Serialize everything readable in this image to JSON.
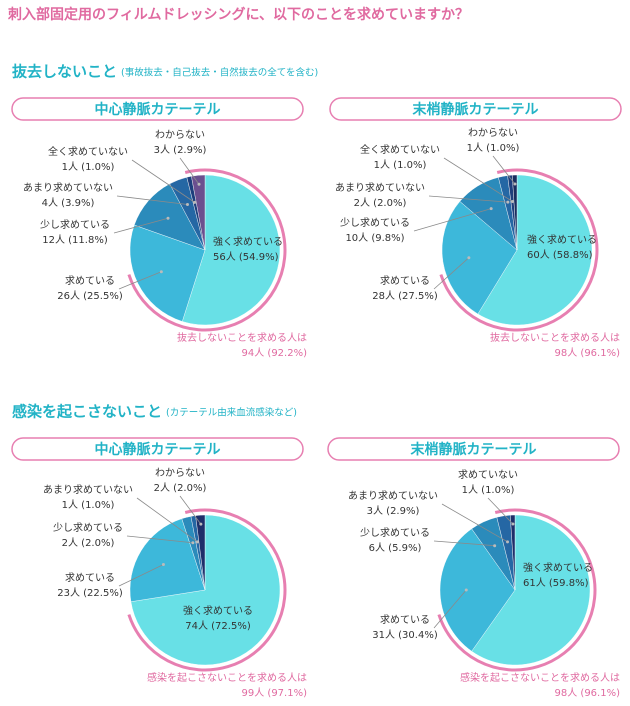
{
  "title": "刺入部固定用のフィルムドレッシングに、以下のことを求めていますか？",
  "sections": [
    {
      "heading": "抜去しないこと",
      "note": "(事故抜去・自己抜去・自然抜去の全てを含む)"
    },
    {
      "heading": "感染を起こさないこと",
      "note": "(カテーテル由来血流感染など)"
    }
  ],
  "chart_data": [
    {
      "type": "pie",
      "title": "中心静脈カテーテル",
      "categories": [
        "強く求めている",
        "求めている",
        "少し求めている",
        "あまり求めていない",
        "全く求めていない",
        "わからない"
      ],
      "values": [
        54.9,
        25.5,
        11.8,
        3.9,
        1.0,
        2.9
      ],
      "value_labels": [
        "56人 (54.9%)",
        "26人 (25.5%)",
        "12人 (11.8%)",
        "4人 (3.9%)",
        "1人 (1.0%)",
        "3人 (2.9%)"
      ],
      "colors": [
        "#68e0e6",
        "#3db8da",
        "#2b8bbb",
        "#2567a4",
        "#1e3f7c",
        "#6b4f8f"
      ],
      "annotation": [
        "抜去しないことを求める人は",
        "94人 (92.2%)"
      ]
    },
    {
      "type": "pie",
      "title": "末梢静脈カテーテル",
      "categories": [
        "強く求めている",
        "求めている",
        "少し求めている",
        "あまり求めていない",
        "全く求めていない",
        "わからない"
      ],
      "values": [
        58.8,
        27.5,
        9.8,
        2.0,
        1.0,
        1.0
      ],
      "value_labels": [
        "60人 (58.8%)",
        "28人 (27.5%)",
        "10人 (9.8%)",
        "2人 (2.0%)",
        "1人 (1.0%)",
        "1人 (1.0%)"
      ],
      "colors": [
        "#68e0e6",
        "#3db8da",
        "#2b8bbb",
        "#2567a4",
        "#1e3f7c",
        "#1a2d5e"
      ],
      "annotation": [
        "抜去しないことを求める人は",
        "98人 (96.1%)"
      ]
    },
    {
      "type": "pie",
      "title": "中心静脈カテーテル",
      "categories": [
        "強く求めている",
        "求めている",
        "少し求めている",
        "あまり求めていない",
        "わからない"
      ],
      "values": [
        72.5,
        22.5,
        2.0,
        1.0,
        2.0
      ],
      "value_labels": [
        "74人 (72.5%)",
        "23人 (22.5%)",
        "2人 (2.0%)",
        "1人 (1.0%)",
        "2人 (2.0%)"
      ],
      "colors": [
        "#68e0e6",
        "#3db8da",
        "#2b8bbb",
        "#2567a4",
        "#1e2f6a"
      ],
      "annotation": [
        "感染を起こさないことを求める人は",
        "99人 (97.1%)"
      ]
    },
    {
      "type": "pie",
      "title": "末梢静脈カテーテル",
      "categories": [
        "強く求めている",
        "求めている",
        "少し求めている",
        "あまり求めていない",
        "求めていない"
      ],
      "values": [
        59.8,
        30.4,
        5.9,
        2.9,
        1.0
      ],
      "value_labels": [
        "61人 (59.8%)",
        "31人 (30.4%)",
        "6人 (5.9%)",
        "3人 (2.9%)",
        "1人 (1.0%)"
      ],
      "colors": [
        "#68e0e6",
        "#3db8da",
        "#2b8bbb",
        "#2567a4",
        "#1e2f6a"
      ],
      "annotation": [
        "感染を起こさないことを求める人は",
        "98人 (96.1%)"
      ]
    }
  ]
}
